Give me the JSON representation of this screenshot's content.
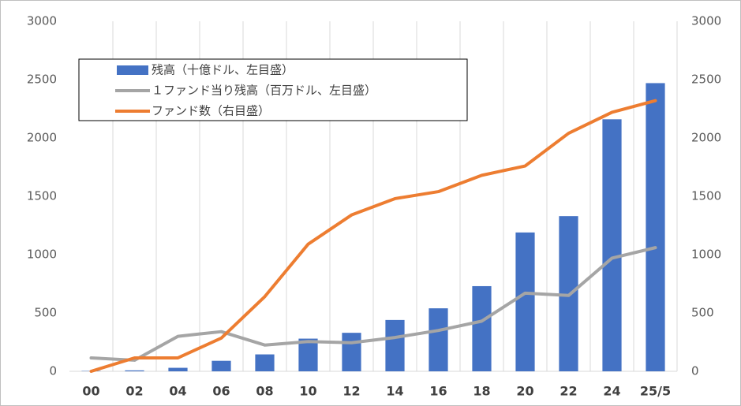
{
  "chart_data": {
    "type": "bar_line",
    "categories": [
      "00",
      "02",
      "04",
      "06",
      "08",
      "10",
      "12",
      "14",
      "16",
      "18",
      "20",
      "22",
      "24",
      "25/5"
    ],
    "series": [
      {
        "name": "残高（十億ドル、左目盛）",
        "type": "bar",
        "color": "#4472c4",
        "values": [
          3,
          8,
          30,
          90,
          145,
          280,
          330,
          440,
          540,
          730,
          1190,
          1330,
          2160,
          2470
        ]
      },
      {
        "name": "１ファンド当り残高（百万ドル、左目盛）",
        "type": "line",
        "color": "#a5a5a5",
        "values": [
          115,
          95,
          300,
          340,
          225,
          255,
          245,
          290,
          350,
          430,
          670,
          650,
          970,
          1060
        ]
      },
      {
        "name": "ファンド数（右目盛）",
        "type": "line",
        "color": "#ed7d31",
        "axis": "y2",
        "values": [
          0,
          115,
          115,
          285,
          640,
          1090,
          1340,
          1480,
          1540,
          1680,
          1760,
          2040,
          2220,
          2320
        ]
      }
    ],
    "ylim": [
      0,
      3000
    ],
    "yticks": [
      0,
      500,
      1000,
      1500,
      2000,
      2500,
      3000
    ],
    "y2lim": [
      0,
      3000
    ],
    "y2ticks": [
      0,
      500,
      1000,
      1500,
      2000,
      2500,
      3000
    ],
    "grid": "x",
    "legend": "upper-left"
  }
}
